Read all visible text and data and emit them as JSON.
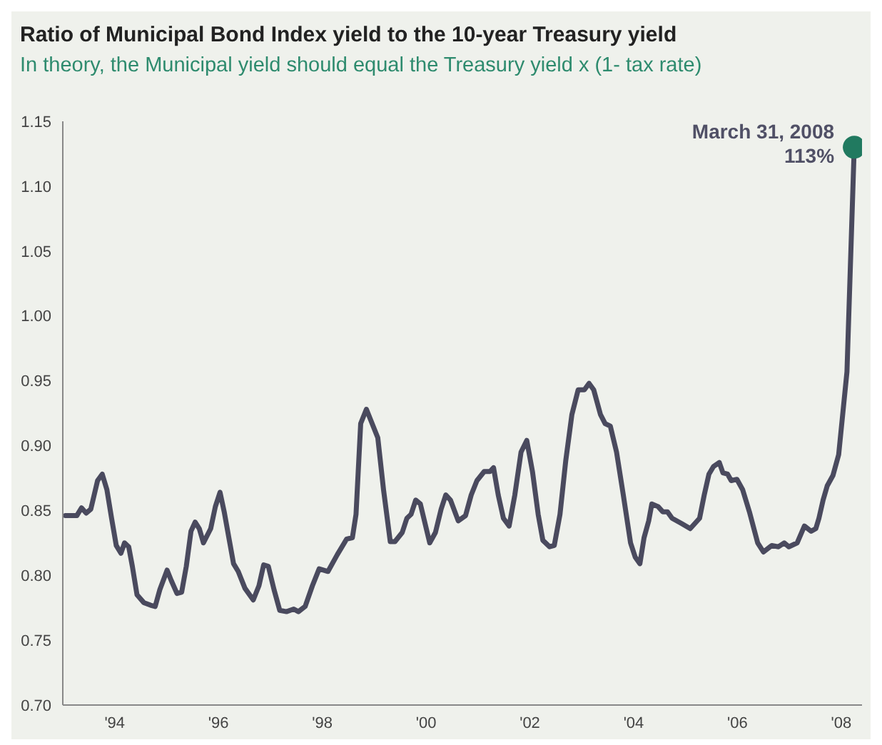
{
  "chart_data": {
    "type": "line",
    "title": "Ratio of Municipal Bond Index yield to the 10-year Treasury yield",
    "subtitle": "In theory, the Municipal yield should equal the Treasury yield x (1- tax rate)",
    "xlim": [
      1993,
      2008.4
    ],
    "xticks": [
      {
        "value": 1994,
        "label": "'94"
      },
      {
        "value": 1996,
        "label": "'96"
      },
      {
        "value": 1998,
        "label": "'98"
      },
      {
        "value": 2000,
        "label": "'00"
      },
      {
        "value": 2002,
        "label": "'02"
      },
      {
        "value": 2004,
        "label": "'04"
      },
      {
        "value": 2006,
        "label": "'06"
      },
      {
        "value": 2008,
        "label": "'08"
      }
    ],
    "ylim": [
      0.7,
      1.15
    ],
    "yticks": [
      {
        "value": 0.7,
        "label": "0.70"
      },
      {
        "value": 0.75,
        "label": "0.75"
      },
      {
        "value": 0.8,
        "label": "0.80"
      },
      {
        "value": 0.85,
        "label": "0.85"
      },
      {
        "value": 0.9,
        "label": "0.90"
      },
      {
        "value": 0.95,
        "label": "0.95"
      },
      {
        "value": 1.0,
        "label": "1.00"
      },
      {
        "value": 1.05,
        "label": "1.05"
      },
      {
        "value": 1.1,
        "label": "1.10"
      },
      {
        "value": 1.15,
        "label": "1.15"
      }
    ],
    "grid": false,
    "legend": false,
    "marker": "none",
    "line_style": "solid",
    "annotations": [
      {
        "text": "March 31, 2008\n113%",
        "x": 2008.25,
        "y": 1.13
      }
    ],
    "series": [
      {
        "color": "#4a4a5e",
        "x": [
          1993.05,
          1993.15,
          1993.27,
          1993.36,
          1993.45,
          1993.54,
          1993.67,
          1993.76,
          1993.85,
          1993.94,
          1994.03,
          1994.12,
          1994.19,
          1994.27,
          1994.34,
          1994.43,
          1994.56,
          1994.69,
          1994.78,
          1994.87,
          1995.01,
          1995.09,
          1995.2,
          1995.29,
          1995.38,
          1995.47,
          1995.55,
          1995.63,
          1995.71,
          1995.85,
          1995.94,
          1996.03,
          1996.11,
          1996.2,
          1996.29,
          1996.38,
          1996.51,
          1996.67,
          1996.78,
          1996.87,
          1996.96,
          1997.07,
          1997.18,
          1997.31,
          1997.45,
          1997.54,
          1997.67,
          1997.81,
          1997.94,
          1998.11,
          1998.29,
          1998.47,
          1998.58,
          1998.65,
          1998.74,
          1998.85,
          1998.96,
          1999.07,
          1999.18,
          1999.31,
          1999.4,
          1999.54,
          1999.63,
          1999.71,
          1999.8,
          1999.89,
          1999.98,
          2000.07,
          2000.18,
          2000.29,
          2000.38,
          2000.47,
          2000.62,
          2000.76,
          2000.87,
          2000.98,
          2001.12,
          2001.23,
          2001.3,
          2001.39,
          2001.49,
          2001.6,
          2001.71,
          2001.83,
          2001.94,
          2002.05,
          2002.16,
          2002.25,
          2002.38,
          2002.47,
          2002.58,
          2002.69,
          2002.81,
          2002.93,
          2003.05,
          2003.14,
          2003.23,
          2003.36,
          2003.45,
          2003.55,
          2003.67,
          2003.8,
          2003.94,
          2004.03,
          2004.12,
          2004.2,
          2004.29,
          2004.35,
          2004.47,
          2004.56,
          2004.65,
          2004.74,
          2004.92,
          2005.09,
          2005.27,
          2005.36,
          2005.45,
          2005.54,
          2005.65,
          2005.72,
          2005.81,
          2005.88,
          2005.99,
          2006.1,
          2006.23,
          2006.39,
          2006.5,
          2006.66,
          2006.79,
          2006.9,
          2006.99,
          2007.15,
          2007.29,
          2007.42,
          2007.51,
          2007.57,
          2007.65,
          2007.73,
          2007.84,
          2007.95,
          2008.02,
          2008.11,
          2008.25
        ],
        "values": [
          0.846,
          0.846,
          0.846,
          0.852,
          0.848,
          0.851,
          0.873,
          0.878,
          0.866,
          0.844,
          0.823,
          0.817,
          0.825,
          0.822,
          0.807,
          0.785,
          0.779,
          0.777,
          0.776,
          0.789,
          0.804,
          0.796,
          0.786,
          0.787,
          0.807,
          0.834,
          0.841,
          0.836,
          0.825,
          0.836,
          0.853,
          0.864,
          0.849,
          0.829,
          0.809,
          0.803,
          0.79,
          0.781,
          0.792,
          0.808,
          0.807,
          0.789,
          0.773,
          0.772,
          0.774,
          0.772,
          0.776,
          0.792,
          0.805,
          0.803,
          0.816,
          0.828,
          0.829,
          0.847,
          0.917,
          0.928,
          0.917,
          0.906,
          0.866,
          0.826,
          0.826,
          0.833,
          0.844,
          0.847,
          0.858,
          0.855,
          0.84,
          0.825,
          0.833,
          0.851,
          0.862,
          0.858,
          0.842,
          0.846,
          0.862,
          0.873,
          0.88,
          0.88,
          0.883,
          0.862,
          0.844,
          0.838,
          0.862,
          0.895,
          0.904,
          0.88,
          0.847,
          0.827,
          0.822,
          0.823,
          0.847,
          0.888,
          0.924,
          0.943,
          0.943,
          0.948,
          0.943,
          0.924,
          0.917,
          0.915,
          0.895,
          0.862,
          0.825,
          0.814,
          0.809,
          0.829,
          0.842,
          0.855,
          0.853,
          0.849,
          0.849,
          0.844,
          0.84,
          0.836,
          0.844,
          0.862,
          0.878,
          0.884,
          0.887,
          0.879,
          0.878,
          0.873,
          0.874,
          0.866,
          0.849,
          0.825,
          0.818,
          0.823,
          0.822,
          0.825,
          0.822,
          0.825,
          0.838,
          0.834,
          0.836,
          0.844,
          0.858,
          0.869,
          0.877,
          0.893,
          0.921,
          0.957,
          1.13
        ]
      },
      {
        "type": "scatter",
        "color": "#217a60",
        "marker": "circle",
        "x": [
          2008.25
        ],
        "values": [
          1.13
        ]
      }
    ]
  }
}
